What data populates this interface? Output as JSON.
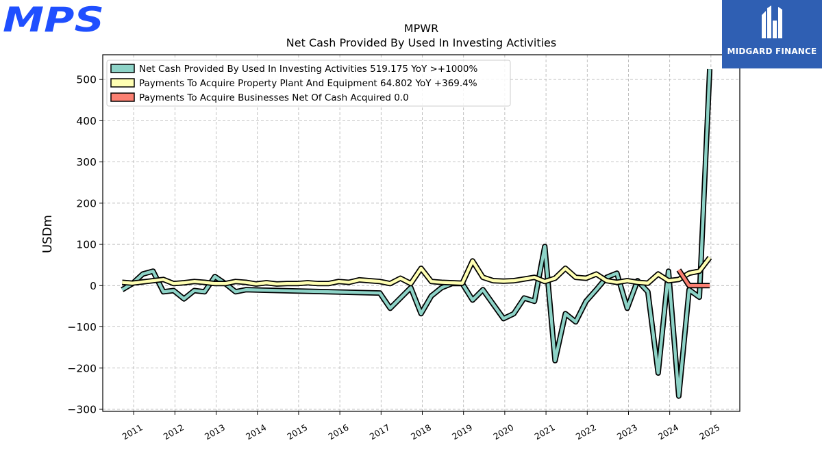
{
  "logos": {
    "left": "MPS",
    "right": "MIDGARD FINANCE"
  },
  "colors": {
    "series1": "#8dd3c7",
    "series2": "#ffffb3",
    "series3": "#fb8072",
    "grid": "#b0b0b0",
    "mps_blue": "#1f4fff",
    "midgard_bg": "#2f5fb3"
  },
  "chart_data": {
    "type": "line",
    "title": "MPWR",
    "subtitle": "Net Cash Provided By Used In Investing Activities",
    "xlabel": "",
    "ylabel": "USDm",
    "ylim": [
      -305,
      560
    ],
    "xlim": [
      2010.25,
      2025.7
    ],
    "yticks": [
      -300,
      -200,
      -100,
      0,
      100,
      200,
      300,
      400,
      500
    ],
    "ytick_labels": [
      "−300",
      "−200",
      "−100",
      "0",
      "100",
      "200",
      "300",
      "400",
      "500"
    ],
    "xticks": [
      2011,
      2012,
      2013,
      2014,
      2015,
      2016,
      2017,
      2018,
      2019,
      2020,
      2021,
      2022,
      2023,
      2024,
      2025
    ],
    "xtick_labels": [
      "2011",
      "2012",
      "2013",
      "2014",
      "2015",
      "2016",
      "2017",
      "2018",
      "2019",
      "2020",
      "2021",
      "2022",
      "2023",
      "2024",
      "2025"
    ],
    "grid": true,
    "legend_position": "upper-left",
    "series": [
      {
        "name": "Net Cash Provided By Used In Investing Activities  519.175 YoY >+1000%",
        "points": [
          [
            2010.72,
            -10
          ],
          [
            2010.97,
            5
          ],
          [
            2011.22,
            28
          ],
          [
            2011.47,
            35
          ],
          [
            2011.72,
            -15
          ],
          [
            2011.97,
            -12
          ],
          [
            2012.22,
            -32
          ],
          [
            2012.47,
            -12
          ],
          [
            2012.72,
            -15
          ],
          [
            2012.97,
            22
          ],
          [
            2013.22,
            5
          ],
          [
            2013.47,
            -15
          ],
          [
            2013.72,
            -10
          ],
          [
            2016.97,
            -18
          ],
          [
            2017.22,
            -55
          ],
          [
            2017.47,
            -30
          ],
          [
            2017.72,
            -5
          ],
          [
            2017.97,
            -68
          ],
          [
            2018.22,
            -25
          ],
          [
            2018.47,
            -5
          ],
          [
            2018.72,
            5
          ],
          [
            2018.97,
            5
          ],
          [
            2019.22,
            -35
          ],
          [
            2019.47,
            -10
          ],
          [
            2019.72,
            -45
          ],
          [
            2019.97,
            -80
          ],
          [
            2020.22,
            -68
          ],
          [
            2020.47,
            -30
          ],
          [
            2020.72,
            -38
          ],
          [
            2020.97,
            95
          ],
          [
            2021.22,
            -182
          ],
          [
            2021.47,
            -68
          ],
          [
            2021.72,
            -88
          ],
          [
            2021.97,
            -38
          ],
          [
            2022.22,
            -10
          ],
          [
            2022.47,
            20
          ],
          [
            2022.72,
            30
          ],
          [
            2022.97,
            -55
          ],
          [
            2023.22,
            12
          ],
          [
            2023.47,
            -15
          ],
          [
            2023.72,
            -212
          ],
          [
            2023.97,
            35
          ],
          [
            2024.22,
            -268
          ],
          [
            2024.47,
            -10
          ],
          [
            2024.72,
            -28
          ],
          [
            2024.97,
            525
          ]
        ]
      },
      {
        "name": "Payments To Acquire Property Plant And Equipment  64.802 YoY +369.4%",
        "points": [
          [
            2010.72,
            8
          ],
          [
            2010.97,
            6
          ],
          [
            2011.72,
            15
          ],
          [
            2011.97,
            5
          ],
          [
            2012.22,
            7
          ],
          [
            2012.47,
            10
          ],
          [
            2012.72,
            8
          ],
          [
            2012.97,
            5
          ],
          [
            2013.22,
            5
          ],
          [
            2013.47,
            10
          ],
          [
            2013.72,
            8
          ],
          [
            2013.97,
            4
          ],
          [
            2014.22,
            7
          ],
          [
            2014.47,
            4
          ],
          [
            2014.72,
            5
          ],
          [
            2014.97,
            5
          ],
          [
            2015.22,
            7
          ],
          [
            2015.47,
            5
          ],
          [
            2015.72,
            5
          ],
          [
            2015.97,
            10
          ],
          [
            2016.22,
            8
          ],
          [
            2016.47,
            14
          ],
          [
            2016.72,
            12
          ],
          [
            2016.97,
            10
          ],
          [
            2017.22,
            5
          ],
          [
            2017.47,
            18
          ],
          [
            2017.72,
            5
          ],
          [
            2017.97,
            42
          ],
          [
            2018.22,
            10
          ],
          [
            2018.47,
            8
          ],
          [
            2018.72,
            7
          ],
          [
            2018.97,
            6
          ],
          [
            2019.22,
            60
          ],
          [
            2019.47,
            20
          ],
          [
            2019.72,
            12
          ],
          [
            2019.97,
            11
          ],
          [
            2020.22,
            12
          ],
          [
            2020.47,
            16
          ],
          [
            2020.72,
            20
          ],
          [
            2020.97,
            10
          ],
          [
            2021.22,
            18
          ],
          [
            2021.47,
            42
          ],
          [
            2021.72,
            20
          ],
          [
            2021.97,
            18
          ],
          [
            2022.22,
            28
          ],
          [
            2022.47,
            12
          ],
          [
            2022.72,
            8
          ],
          [
            2022.97,
            12
          ],
          [
            2023.22,
            8
          ],
          [
            2023.47,
            6
          ],
          [
            2023.72,
            28
          ],
          [
            2023.97,
            12
          ],
          [
            2024.22,
            15
          ],
          [
            2024.47,
            30
          ],
          [
            2024.72,
            35
          ],
          [
            2024.97,
            68
          ]
        ]
      },
      {
        "name": "Payments To Acquire Businesses Net Of Cash Acquired  0.0",
        "points": [
          [
            2024.22,
            38
          ],
          [
            2024.47,
            0
          ],
          [
            2024.72,
            0
          ],
          [
            2024.97,
            0
          ]
        ]
      }
    ]
  }
}
